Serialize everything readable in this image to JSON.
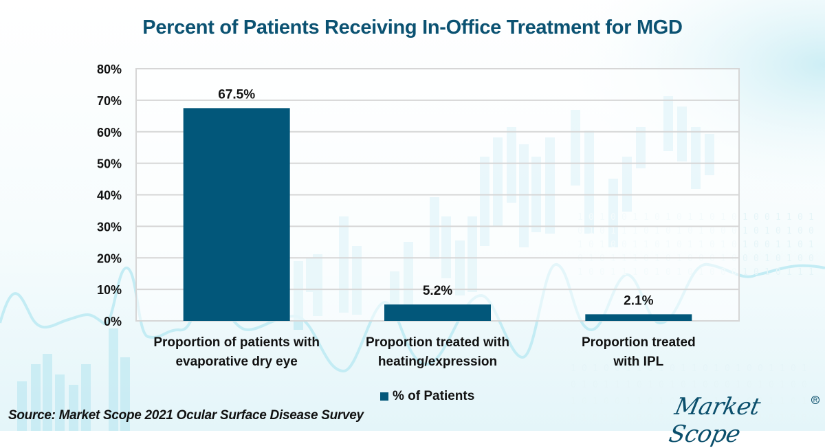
{
  "title": "Percent of Patients Receiving In-Office Treatment for MGD",
  "source": "Source: Market Scope 2021 Ocular Surface Disease Survey",
  "logo": {
    "text": "Market Scope",
    "registered_mark": "R"
  },
  "colors": {
    "bar": "#02577a",
    "title": "#0b5272",
    "gridline": "#d6d6d6",
    "background_accent": "#bfe9f2"
  },
  "chart_data": {
    "type": "bar",
    "title": "Percent of Patients Receiving In-Office Treatment for MGD",
    "xlabel": "",
    "ylabel": "",
    "categories": [
      [
        "Proportion of patients with",
        "evaporative dry eye"
      ],
      [
        "Proportion treated with",
        "heating/expression"
      ],
      [
        "Proportion treated",
        "with IPL"
      ]
    ],
    "series": [
      {
        "name": "% of Patients",
        "values": [
          67.5,
          5.2,
          2.1
        ],
        "labels": [
          "67.5%",
          "5.2%",
          "2.1%"
        ]
      }
    ],
    "ylim": [
      0,
      80
    ],
    "yticks": [
      0,
      10,
      20,
      30,
      40,
      50,
      60,
      70,
      80
    ],
    "ytick_labels": [
      "0%",
      "10%",
      "20%",
      "30%",
      "40%",
      "50%",
      "60%",
      "70%",
      "80%"
    ],
    "grid": true,
    "legend": {
      "position": "bottom-center",
      "entries": [
        "% of Patients"
      ]
    }
  }
}
